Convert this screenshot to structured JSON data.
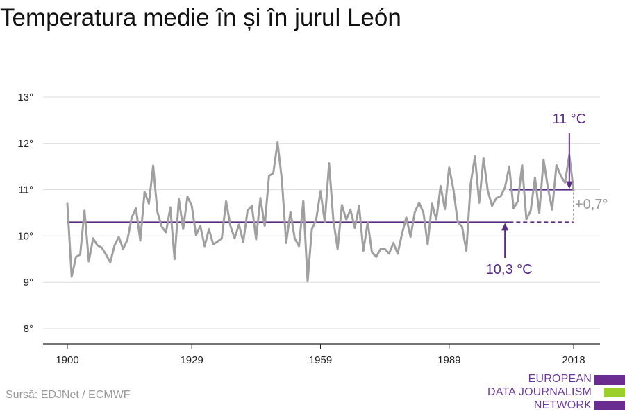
{
  "title": "Temperatura medie în și în jurul León",
  "source": "Sursă: EDJNet / ECMWF",
  "brand": {
    "lines": [
      "EUROPEAN",
      "DATA JOURNALISM",
      "NETWORK"
    ],
    "colors": {
      "purple": "#6a2c91",
      "green": "#9bcf2a",
      "text": "#6a3a9a"
    }
  },
  "colors": {
    "series": "#a0a0a0",
    "reference": "#5b2a86",
    "grid": "#dcdcdc",
    "delta": "#9a9a9a"
  },
  "chart_data": {
    "type": "line",
    "x_ticks": [
      1900,
      1929,
      1959,
      1989,
      2018
    ],
    "y_ticks": [
      8,
      9,
      10,
      11,
      12,
      13
    ],
    "y_tick_labels": [
      "8°",
      "9°",
      "10°",
      "11°",
      "12°",
      "13°"
    ],
    "xlim": [
      1900,
      2018
    ],
    "ylim": [
      8,
      13
    ],
    "grid": "horizontal",
    "series": [
      {
        "x": [
          1900,
          1901,
          1902,
          1903,
          1904,
          1905,
          1906,
          1907,
          1908,
          1909,
          1910,
          1911,
          1912,
          1913,
          1914,
          1915,
          1916,
          1917,
          1918,
          1919,
          1920,
          1921,
          1922,
          1923,
          1924,
          1925,
          1926,
          1927,
          1928,
          1929,
          1930,
          1931,
          1932,
          1933,
          1934,
          1935,
          1936,
          1937,
          1938,
          1939,
          1940,
          1941,
          1942,
          1943,
          1944,
          1945,
          1946,
          1947,
          1948,
          1949,
          1950,
          1951,
          1952,
          1953,
          1954,
          1955,
          1956,
          1957,
          1958,
          1959,
          1960,
          1961,
          1962,
          1963,
          1964,
          1965,
          1966,
          1967,
          1968,
          1969,
          1970,
          1971,
          1972,
          1973,
          1974,
          1975,
          1976,
          1977,
          1978,
          1979,
          1980,
          1981,
          1982,
          1983,
          1984,
          1985,
          1986,
          1987,
          1988,
          1989,
          1990,
          1991,
          1992,
          1993,
          1994,
          1995,
          1996,
          1997,
          1998,
          1999,
          2000,
          2001,
          2002,
          2003,
          2004,
          2005,
          2006,
          2007,
          2008,
          2009,
          2010,
          2011,
          2012,
          2013,
          2014,
          2015,
          2016,
          2017,
          2018
        ],
        "values": [
          10.7,
          9.12,
          9.55,
          9.6,
          10.55,
          9.45,
          9.95,
          9.8,
          9.75,
          9.6,
          9.43,
          9.8,
          9.98,
          9.72,
          9.92,
          10.4,
          10.6,
          9.9,
          10.95,
          10.7,
          11.52,
          10.52,
          10.2,
          10.08,
          10.62,
          9.5,
          10.8,
          10.15,
          10.85,
          10.65,
          10.02,
          10.22,
          9.78,
          10.15,
          9.82,
          9.88,
          9.95,
          10.75,
          10.22,
          9.95,
          10.25,
          9.87,
          10.55,
          10.65,
          9.93,
          10.82,
          10.22,
          11.3,
          11.35,
          12.02,
          11.22,
          9.85,
          10.52,
          9.95,
          9.78,
          10.76,
          9.02,
          10.15,
          10.35,
          10.97,
          10.3,
          11.57,
          10.35,
          9.72,
          10.67,
          10.35,
          10.57,
          10.17,
          10.65,
          9.68,
          10.3,
          9.65,
          9.55,
          9.72,
          9.72,
          9.62,
          9.85,
          9.62,
          10.05,
          10.4,
          9.98,
          10.52,
          10.72,
          10.5,
          9.82,
          10.7,
          10.35,
          11.08,
          10.58,
          11.48,
          11.0,
          10.3,
          10.2,
          9.68,
          11.12,
          11.72,
          10.72,
          11.68,
          10.98,
          10.65,
          10.82,
          10.86,
          11.05,
          11.5,
          10.6,
          10.75,
          11.53,
          10.36,
          10.55,
          11.26,
          10.5,
          11.65,
          11.05,
          10.57,
          11.53,
          11.3,
          11.15,
          11.75,
          10.98
        ]
      }
    ],
    "reference_baseline": {
      "value": 10.3,
      "label": "10,3 °C"
    },
    "reference_recent": {
      "value": 11.0,
      "label": "11 °C"
    },
    "difference_label": "+0,7°"
  }
}
